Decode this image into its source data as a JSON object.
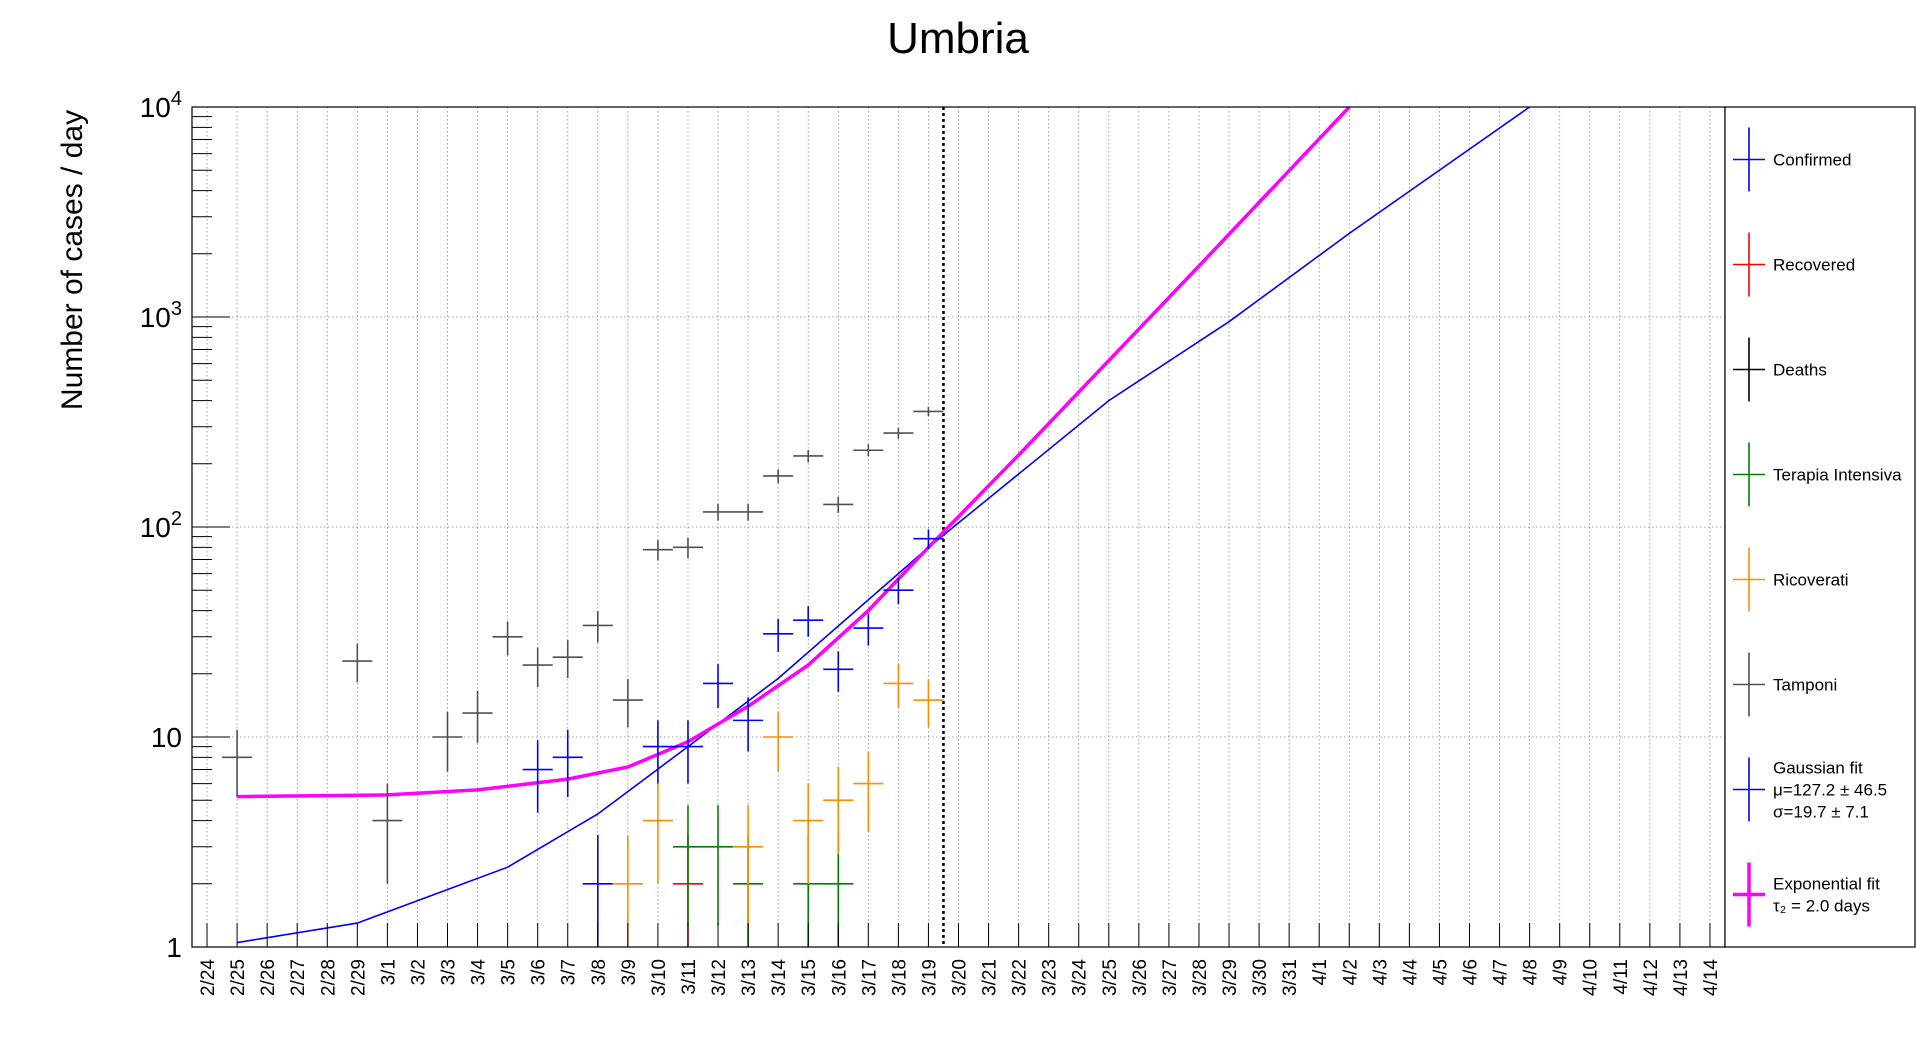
{
  "chart_data": {
    "type": "scatter",
    "title": "Umbria",
    "ylabel": "Number of cases / day",
    "xlabel": "",
    "yscale": "log",
    "ylim": [
      1,
      10000
    ],
    "y_tick_labels": [
      {
        "value": 1,
        "base": "1",
        "exp": ""
      },
      {
        "value": 10,
        "base": "10",
        "exp": ""
      },
      {
        "value": 100,
        "base": "10",
        "exp": "2"
      },
      {
        "value": 1000,
        "base": "10",
        "exp": "3"
      },
      {
        "value": 10000,
        "base": "10",
        "exp": "4"
      }
    ],
    "x_tick_labels": [
      "2/24",
      "2/25",
      "2/26",
      "2/27",
      "2/28",
      "2/29",
      "3/1",
      "3/2",
      "3/3",
      "3/4",
      "3/5",
      "3/6",
      "3/7",
      "3/8",
      "3/9",
      "3/10",
      "3/11",
      "3/12",
      "3/13",
      "3/14",
      "3/15",
      "3/16",
      "3/17",
      "3/18",
      "3/19",
      "3/20",
      "3/21",
      "3/22",
      "3/23",
      "3/24",
      "3/25",
      "3/26",
      "3/27",
      "3/28",
      "3/29",
      "3/30",
      "3/31",
      "4/1",
      "4/2",
      "4/3",
      "4/4",
      "4/5",
      "4/6",
      "4/7",
      "4/8",
      "4/9",
      "4/10",
      "4/11",
      "4/12",
      "4/13",
      "4/14"
    ],
    "grid": true,
    "legend_position": "right",
    "vertical_marker": {
      "x": "3/19",
      "style": "dotted"
    },
    "series": [
      {
        "name": "Confirmed",
        "color": "#0000ff",
        "points": [
          {
            "x": "3/6",
            "y": 7
          },
          {
            "x": "3/7",
            "y": 8
          },
          {
            "x": "3/8",
            "y": 2
          },
          {
            "x": "3/10",
            "y": 9
          },
          {
            "x": "3/11",
            "y": 9
          },
          {
            "x": "3/12",
            "y": 18
          },
          {
            "x": "3/13",
            "y": 12
          },
          {
            "x": "3/14",
            "y": 31
          },
          {
            "x": "3/15",
            "y": 36
          },
          {
            "x": "3/16",
            "y": 21
          },
          {
            "x": "3/17",
            "y": 33
          },
          {
            "x": "3/18",
            "y": 50
          },
          {
            "x": "3/19",
            "y": 88
          }
        ]
      },
      {
        "name": "Recovered",
        "color": "#ff0000",
        "points": [
          {
            "x": "3/11",
            "y": 2
          }
        ]
      },
      {
        "name": "Deaths",
        "color": "#000000",
        "points": []
      },
      {
        "name": "Terapia Intensiva",
        "color": "#008000",
        "points": [
          {
            "x": "3/11",
            "y": 3
          },
          {
            "x": "3/12",
            "y": 3
          },
          {
            "x": "3/13",
            "y": 2
          },
          {
            "x": "3/15",
            "y": 2
          },
          {
            "x": "3/16",
            "y": 2
          }
        ]
      },
      {
        "name": "Ricoverati",
        "color": "#ff8c00",
        "points": [
          {
            "x": "3/9",
            "y": 2
          },
          {
            "x": "3/10",
            "y": 4
          },
          {
            "x": "3/13",
            "y": 3
          },
          {
            "x": "3/14",
            "y": 10
          },
          {
            "x": "3/15",
            "y": 4
          },
          {
            "x": "3/16",
            "y": 5
          },
          {
            "x": "3/17",
            "y": 6
          },
          {
            "x": "3/18",
            "y": 18
          },
          {
            "x": "3/19",
            "y": 15
          }
        ]
      },
      {
        "name": "Tamponi",
        "color": "#505050",
        "points": [
          {
            "x": "2/25",
            "y": 8
          },
          {
            "x": "2/29",
            "y": 23
          },
          {
            "x": "3/1",
            "y": 4
          },
          {
            "x": "3/3",
            "y": 10
          },
          {
            "x": "3/4",
            "y": 13
          },
          {
            "x": "3/5",
            "y": 30
          },
          {
            "x": "3/6",
            "y": 22
          },
          {
            "x": "3/7",
            "y": 24
          },
          {
            "x": "3/8",
            "y": 34
          },
          {
            "x": "3/9",
            "y": 15
          },
          {
            "x": "3/10",
            "y": 78
          },
          {
            "x": "3/11",
            "y": 80
          },
          {
            "x": "3/12",
            "y": 118
          },
          {
            "x": "3/13",
            "y": 118
          },
          {
            "x": "3/14",
            "y": 175
          },
          {
            "x": "3/15",
            "y": 218
          },
          {
            "x": "3/16",
            "y": 128
          },
          {
            "x": "3/17",
            "y": 232
          },
          {
            "x": "3/18",
            "y": 280
          },
          {
            "x": "3/19",
            "y": 355
          }
        ]
      }
    ],
    "fits": [
      {
        "name": "Gaussian fit",
        "color": "#0000ff",
        "lines": [
          "Gaussian fit",
          "μ=127.2 ± 46.5",
          "σ=19.7 ± 7.1"
        ],
        "curve": [
          {
            "x": "2/25",
            "y": 1.05
          },
          {
            "x": "2/29",
            "y": 1.3
          },
          {
            "x": "3/5",
            "y": 2.4
          },
          {
            "x": "3/8",
            "y": 4.3
          },
          {
            "x": "3/11",
            "y": 9
          },
          {
            "x": "3/14",
            "y": 19
          },
          {
            "x": "3/19",
            "y": 80
          },
          {
            "x": "3/25",
            "y": 400
          },
          {
            "x": "3/29",
            "y": 950
          },
          {
            "x": "4/2",
            "y": 2500
          },
          {
            "x": "4/8",
            "y": 10000
          }
        ]
      },
      {
        "name": "Exponential fit",
        "color": "#ff00ff",
        "lines": [
          "Exponential fit",
          "τ₂ = 2.0 days"
        ],
        "curve": [
          {
            "x": "2/25",
            "y": 5.2
          },
          {
            "x": "3/1",
            "y": 5.3
          },
          {
            "x": "3/4",
            "y": 5.6
          },
          {
            "x": "3/7",
            "y": 6.3
          },
          {
            "x": "3/9",
            "y": 7.2
          },
          {
            "x": "3/11",
            "y": 9.5
          },
          {
            "x": "3/13",
            "y": 14
          },
          {
            "x": "3/15",
            "y": 22
          },
          {
            "x": "3/17",
            "y": 40
          },
          {
            "x": "3/19",
            "y": 80
          },
          {
            "x": "3/22",
            "y": 220
          },
          {
            "x": "3/25",
            "y": 620
          },
          {
            "x": "3/28",
            "y": 1750
          },
          {
            "x": "4/2",
            "y": 10000
          }
        ]
      }
    ]
  }
}
